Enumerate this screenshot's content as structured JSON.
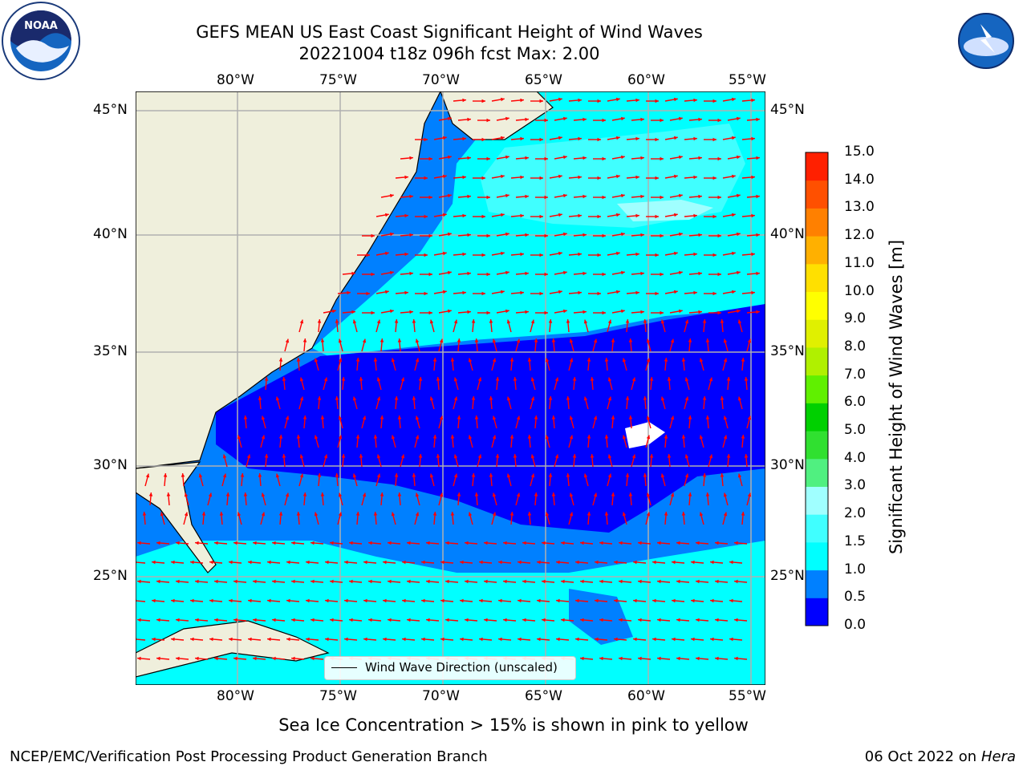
{
  "header": {
    "title_line1": "GEFS MEAN US East Coast Significant Height of Wind Waves",
    "title_line2": "20221004 t18z 096h fcst   Max: 2.00"
  },
  "logos": {
    "left": "NOAA",
    "right": "NATIONAL WEATHER SERVICE"
  },
  "map": {
    "lon_labels": [
      "80°W",
      "75°W",
      "70°W",
      "65°W",
      "60°W",
      "55°W"
    ],
    "lat_labels": [
      "45°N",
      "40°N",
      "35°N",
      "30°N",
      "25°N"
    ],
    "legend_label": "Wind Wave Direction (unscaled)",
    "colors": {
      "land": "#efefdc",
      "level_0": "#0000ff",
      "level_0_5": "#0080ff",
      "level_1": "#00ffff",
      "level_1_5": "#40ffff",
      "level_2": "#a0ffff",
      "arrow": "#ff0000"
    }
  },
  "colorbar": {
    "label": "Significant Height of Wind Waves [m]",
    "ticks": [
      "0.0",
      "0.5",
      "1.0",
      "1.5",
      "2.0",
      "3.0",
      "4.0",
      "5.0",
      "6.0",
      "7.0",
      "8.0",
      "9.0",
      "10.0",
      "11.0",
      "12.0",
      "13.0",
      "14.0",
      "15.0"
    ],
    "colors": [
      "#0000ff",
      "#0080ff",
      "#00ffff",
      "#40ffff",
      "#a0ffff",
      "#50f080",
      "#30e030",
      "#00d000",
      "#60f000",
      "#b0f000",
      "#e0f000",
      "#ffff00",
      "#ffe000",
      "#ffb000",
      "#ff8000",
      "#ff5000",
      "#ff2000",
      "#ff0000"
    ]
  },
  "footer": {
    "sea_ice_note": "Sea Ice Concentration > 15% is shown in pink to yellow",
    "branch": "NCEP/EMC/Verification Post Processing Product Generation Branch",
    "date_text": "06 Oct 2022 on ",
    "machine": "Hera"
  }
}
